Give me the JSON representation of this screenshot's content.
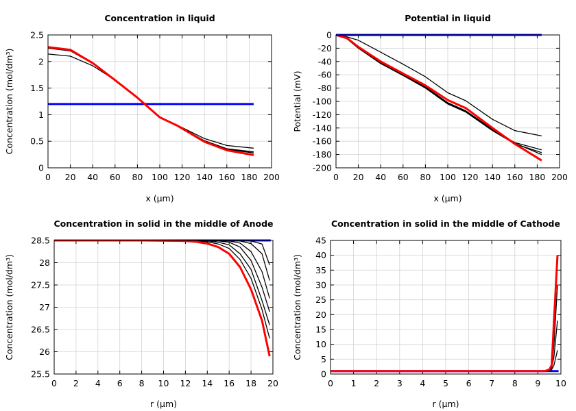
{
  "chart_data": [
    {
      "type": "line",
      "title": "Concentration in liquid",
      "xlabel": "x (µm)",
      "ylabel": "Concentration (mol/dm³)",
      "xlim": [
        0,
        200
      ],
      "ylim": [
        0,
        2.5
      ],
      "xticks": [
        "0",
        "20",
        "40",
        "60",
        "80",
        "100",
        "120",
        "140",
        "160",
        "180",
        "200"
      ],
      "yticks": [
        "0",
        "0.5",
        "1",
        "1.5",
        "2",
        "2.5"
      ],
      "grid": true,
      "series": [
        {
          "color": "#0000ff",
          "x": [
            0,
            184
          ],
          "y": [
            1.2,
            1.2
          ]
        },
        {
          "color": "#000000",
          "x": [
            0,
            20,
            40,
            60,
            80,
            100,
            116,
            140,
            160,
            184
          ],
          "y": [
            2.14,
            2.1,
            1.92,
            1.65,
            1.32,
            0.96,
            0.8,
            0.55,
            0.42,
            0.37
          ]
        },
        {
          "color": "#000000",
          "x": [
            0,
            20,
            40,
            60,
            80,
            100,
            116,
            140,
            160,
            184
          ],
          "y": [
            2.25,
            2.2,
            1.96,
            1.65,
            1.32,
            0.95,
            0.8,
            0.51,
            0.36,
            0.3
          ]
        },
        {
          "color": "#000000",
          "x": [
            0,
            20,
            40,
            60,
            80,
            100,
            116,
            140,
            160,
            184
          ],
          "y": [
            2.26,
            2.21,
            1.97,
            1.65,
            1.32,
            0.95,
            0.8,
            0.5,
            0.35,
            0.28
          ]
        },
        {
          "color": "#ff0000",
          "x": [
            0,
            20,
            40,
            60,
            80,
            100,
            116,
            140,
            160,
            184
          ],
          "y": [
            2.27,
            2.22,
            1.97,
            1.65,
            1.32,
            0.95,
            0.79,
            0.49,
            0.33,
            0.24
          ]
        }
      ]
    },
    {
      "type": "line",
      "title": "Potential in liquid",
      "xlabel": "x (µm)",
      "ylabel": "Potential (mV)",
      "xlim": [
        0,
        200
      ],
      "ylim": [
        -200,
        0
      ],
      "xticks": [
        "0",
        "20",
        "40",
        "60",
        "80",
        "100",
        "120",
        "140",
        "160",
        "180",
        "200"
      ],
      "yticks": [
        "-200",
        "-180",
        "-160",
        "-140",
        "-120",
        "-100",
        "-80",
        "-60",
        "-40",
        "-20",
        "0"
      ],
      "grid": true,
      "series": [
        {
          "color": "#000000",
          "x": [
            0,
            10,
            20,
            40,
            60,
            80,
            100,
            116,
            140,
            160,
            184
          ],
          "y": [
            0,
            -3,
            -8,
            -26,
            -44,
            -63,
            -87,
            -99,
            -127,
            -144,
            -152
          ]
        },
        {
          "color": "#000000",
          "x": [
            0,
            10,
            20,
            40,
            60,
            80,
            100,
            116,
            140,
            160,
            184
          ],
          "y": [
            0,
            -6,
            -20,
            -43,
            -61,
            -79,
            -103,
            -115,
            -143,
            -162,
            -173
          ]
        },
        {
          "color": "#000000",
          "x": [
            0,
            10,
            20,
            40,
            60,
            80,
            100,
            116,
            140,
            160,
            184
          ],
          "y": [
            0,
            -6,
            -20,
            -43,
            -61,
            -80,
            -104,
            -116,
            -144,
            -164,
            -177
          ]
        },
        {
          "color": "#000000",
          "x": [
            0,
            10,
            20,
            40,
            60,
            80,
            100,
            116,
            140,
            160,
            184
          ],
          "y": [
            0,
            -6,
            -19,
            -42,
            -60,
            -78,
            -102,
            -114,
            -142,
            -163,
            -180
          ]
        },
        {
          "color": "#ff0000",
          "x": [
            0,
            10,
            20,
            40,
            60,
            80,
            100,
            116,
            140,
            160,
            184
          ],
          "y": [
            0,
            -5,
            -18,
            -40,
            -58,
            -76,
            -98,
            -110,
            -140,
            -164,
            -189
          ]
        },
        {
          "color": "#0000ff",
          "x": [
            0,
            184
          ],
          "y": [
            0,
            0
          ]
        }
      ]
    },
    {
      "type": "line",
      "title": "Concentration in solid in the middle of Anode",
      "xlabel": "r (µm)",
      "ylabel": "Concentration (mol/dm³)",
      "xlim": [
        0,
        20
      ],
      "ylim": [
        25.5,
        28.5
      ],
      "xticks": [
        "0",
        "2",
        "4",
        "6",
        "8",
        "10",
        "12",
        "14",
        "16",
        "18",
        "20"
      ],
      "yticks": [
        "25.5",
        "26",
        "26.5",
        "27",
        "27.5",
        "28",
        "28.5"
      ],
      "grid": true,
      "series": [
        {
          "color": "#0000ff",
          "x": [
            0,
            19.8
          ],
          "y": [
            28.5,
            28.5
          ]
        },
        {
          "color": "#000000",
          "x": [
            0,
            4,
            8,
            12,
            13,
            14,
            15,
            16,
            17,
            18,
            19,
            19.7
          ],
          "y": [
            28.5,
            28.5,
            28.5,
            28.5,
            28.5,
            28.5,
            28.5,
            28.5,
            28.5,
            28.49,
            28.42,
            27.95
          ]
        },
        {
          "color": "#000000",
          "x": [
            0,
            4,
            8,
            12,
            13,
            14,
            15,
            16,
            17,
            18,
            19,
            19.7
          ],
          "y": [
            28.5,
            28.5,
            28.5,
            28.5,
            28.5,
            28.5,
            28.5,
            28.5,
            28.49,
            28.43,
            28.2,
            27.6
          ]
        },
        {
          "color": "#000000",
          "x": [
            0,
            4,
            8,
            12,
            13,
            14,
            15,
            16,
            17,
            18,
            19,
            19.7
          ],
          "y": [
            28.5,
            28.5,
            28.5,
            28.5,
            28.5,
            28.5,
            28.5,
            28.49,
            28.44,
            28.25,
            27.8,
            27.2
          ]
        },
        {
          "color": "#000000",
          "x": [
            0,
            4,
            8,
            12,
            13,
            14,
            15,
            16,
            17,
            18,
            19,
            19.7
          ],
          "y": [
            28.5,
            28.5,
            28.5,
            28.5,
            28.5,
            28.5,
            28.49,
            28.46,
            28.35,
            28.05,
            27.45,
            26.9
          ]
        },
        {
          "color": "#000000",
          "x": [
            0,
            4,
            8,
            12,
            13,
            14,
            15,
            16,
            17,
            18,
            19,
            19.7
          ],
          "y": [
            28.5,
            28.5,
            28.5,
            28.5,
            28.5,
            28.49,
            28.46,
            28.4,
            28.2,
            27.85,
            27.15,
            26.6
          ]
        },
        {
          "color": "#000000",
          "x": [
            0,
            4,
            8,
            12,
            13,
            14,
            15,
            16,
            17,
            18,
            19,
            19.7
          ],
          "y": [
            28.5,
            28.5,
            28.5,
            28.5,
            28.49,
            28.47,
            28.42,
            28.32,
            28.07,
            27.65,
            26.95,
            26.3
          ]
        },
        {
          "color": "#ff0000",
          "x": [
            0,
            4,
            8,
            12,
            13,
            14,
            15,
            16,
            17,
            18,
            19,
            19.7
          ],
          "y": [
            28.5,
            28.5,
            28.5,
            28.49,
            28.47,
            28.43,
            28.35,
            28.2,
            27.9,
            27.4,
            26.7,
            25.9
          ]
        }
      ]
    },
    {
      "type": "line",
      "title": "Concentration in solid in the middle of Cathode",
      "xlabel": "r (µm)",
      "ylabel": "Concentration (mol/dm³)",
      "xlim": [
        0,
        10
      ],
      "ylim": [
        0,
        45
      ],
      "xticks": [
        "0",
        "1",
        "2",
        "3",
        "4",
        "5",
        "6",
        "7",
        "8",
        "9",
        "10"
      ],
      "yticks": [
        "0",
        "5",
        "10",
        "15",
        "20",
        "25",
        "30",
        "35",
        "40",
        "45"
      ],
      "grid": true,
      "series": [
        {
          "color": "#0000ff",
          "x": [
            0,
            9.9
          ],
          "y": [
            1,
            1
          ]
        },
        {
          "color": "#000000",
          "x": [
            0,
            9.3,
            9.5,
            9.6,
            9.7,
            9.85
          ],
          "y": [
            1,
            1,
            1.1,
            1.5,
            3,
            8
          ]
        },
        {
          "color": "#000000",
          "x": [
            0,
            9.3,
            9.5,
            9.6,
            9.7,
            9.85
          ],
          "y": [
            1,
            1,
            1.2,
            2,
            6,
            18
          ]
        },
        {
          "color": "#000000",
          "x": [
            0,
            9.3,
            9.5,
            9.6,
            9.7,
            9.85
          ],
          "y": [
            1,
            1,
            1.3,
            2.5,
            10,
            30
          ]
        },
        {
          "color": "#ff0000",
          "x": [
            0,
            9.3,
            9.5,
            9.6,
            9.7,
            9.85
          ],
          "y": [
            1,
            1,
            1.5,
            3,
            18,
            40
          ]
        }
      ]
    }
  ]
}
